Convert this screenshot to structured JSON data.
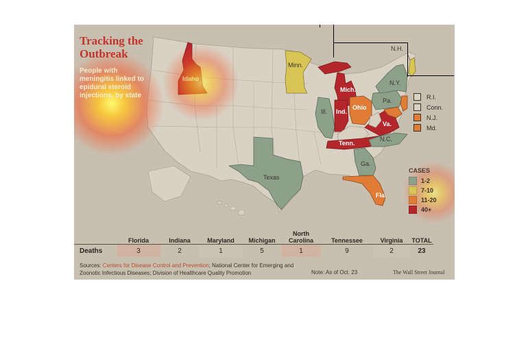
{
  "title": "Tracking the Outbreak",
  "subtitle": "People with meningitis linked to epidural steroid injections, by state",
  "colors": {
    "background": "#c9bfb1",
    "land": "#d9d1c4",
    "cases_1_2": "#8da08a",
    "cases_7_10": "#d9c556",
    "cases_11_20": "#e07c35",
    "cases_40_plus": "#b3262c",
    "title": "#c2352a"
  },
  "legend": {
    "heading": "CASES",
    "items": [
      {
        "label": "1-2",
        "color": "#8da08a"
      },
      {
        "label": "7-10",
        "color": "#d9c556"
      },
      {
        "label": "11-20",
        "color": "#e07c35"
      },
      {
        "label": "40+",
        "color": "#b3262c"
      }
    ]
  },
  "small_states": [
    {
      "label": "R.I.",
      "color": "#8da08a"
    },
    {
      "label": "Conn.",
      "color": "#8da08a"
    },
    {
      "label": "N.J.",
      "color": "#e07c35"
    },
    {
      "label": "Md.",
      "color": "#e07c35"
    }
  ],
  "states": {
    "idaho": {
      "label": "Idaho",
      "category": "40+"
    },
    "minnesota": {
      "label": "Minn.",
      "category": "7-10"
    },
    "michigan": {
      "label": "Mich.",
      "category": "40+"
    },
    "illinois": {
      "label": "Ill.",
      "category": "1-2"
    },
    "indiana": {
      "label": "Ind.",
      "category": "40+"
    },
    "ohio": {
      "label": "Ohio",
      "category": "11-20"
    },
    "new_york": {
      "label": "N.Y.",
      "category": "1-2"
    },
    "pennsylvania": {
      "label": "Pa.",
      "category": "1-2"
    },
    "new_hampshire": {
      "label": "N.H.",
      "category": "7-10"
    },
    "virginia": {
      "label": "Va.",
      "category": "40+"
    },
    "north_carolina": {
      "label": "N.C.",
      "category": "1-2"
    },
    "tennessee": {
      "label": "Tenn.",
      "category": "40+"
    },
    "georgia": {
      "label": "Ga.",
      "category": "1-2"
    },
    "florida": {
      "label": "Fla.",
      "category": "11-20"
    },
    "texas": {
      "label": "Texas",
      "category": "1-2"
    }
  },
  "deaths_table": {
    "row_label": "Deaths",
    "columns": [
      "Florida",
      "Indiana",
      "Maryland",
      "Michigan",
      "North Carolina",
      "Tennessee",
      "Virginia",
      "TOTAL"
    ],
    "values": [
      "3",
      "2",
      "1",
      "5",
      "1",
      "9",
      "2",
      "23"
    ]
  },
  "sources": {
    "prefix": "Sources: ",
    "link": "Centers for Disease Control and Prevention",
    "rest": "; National Center for Emerging and Zoonotic Infectious Diseases; Division of Healthcare Quality Promotion"
  },
  "note": "Note: As of Oct. 23",
  "credit": "The Wall Street Journal"
}
